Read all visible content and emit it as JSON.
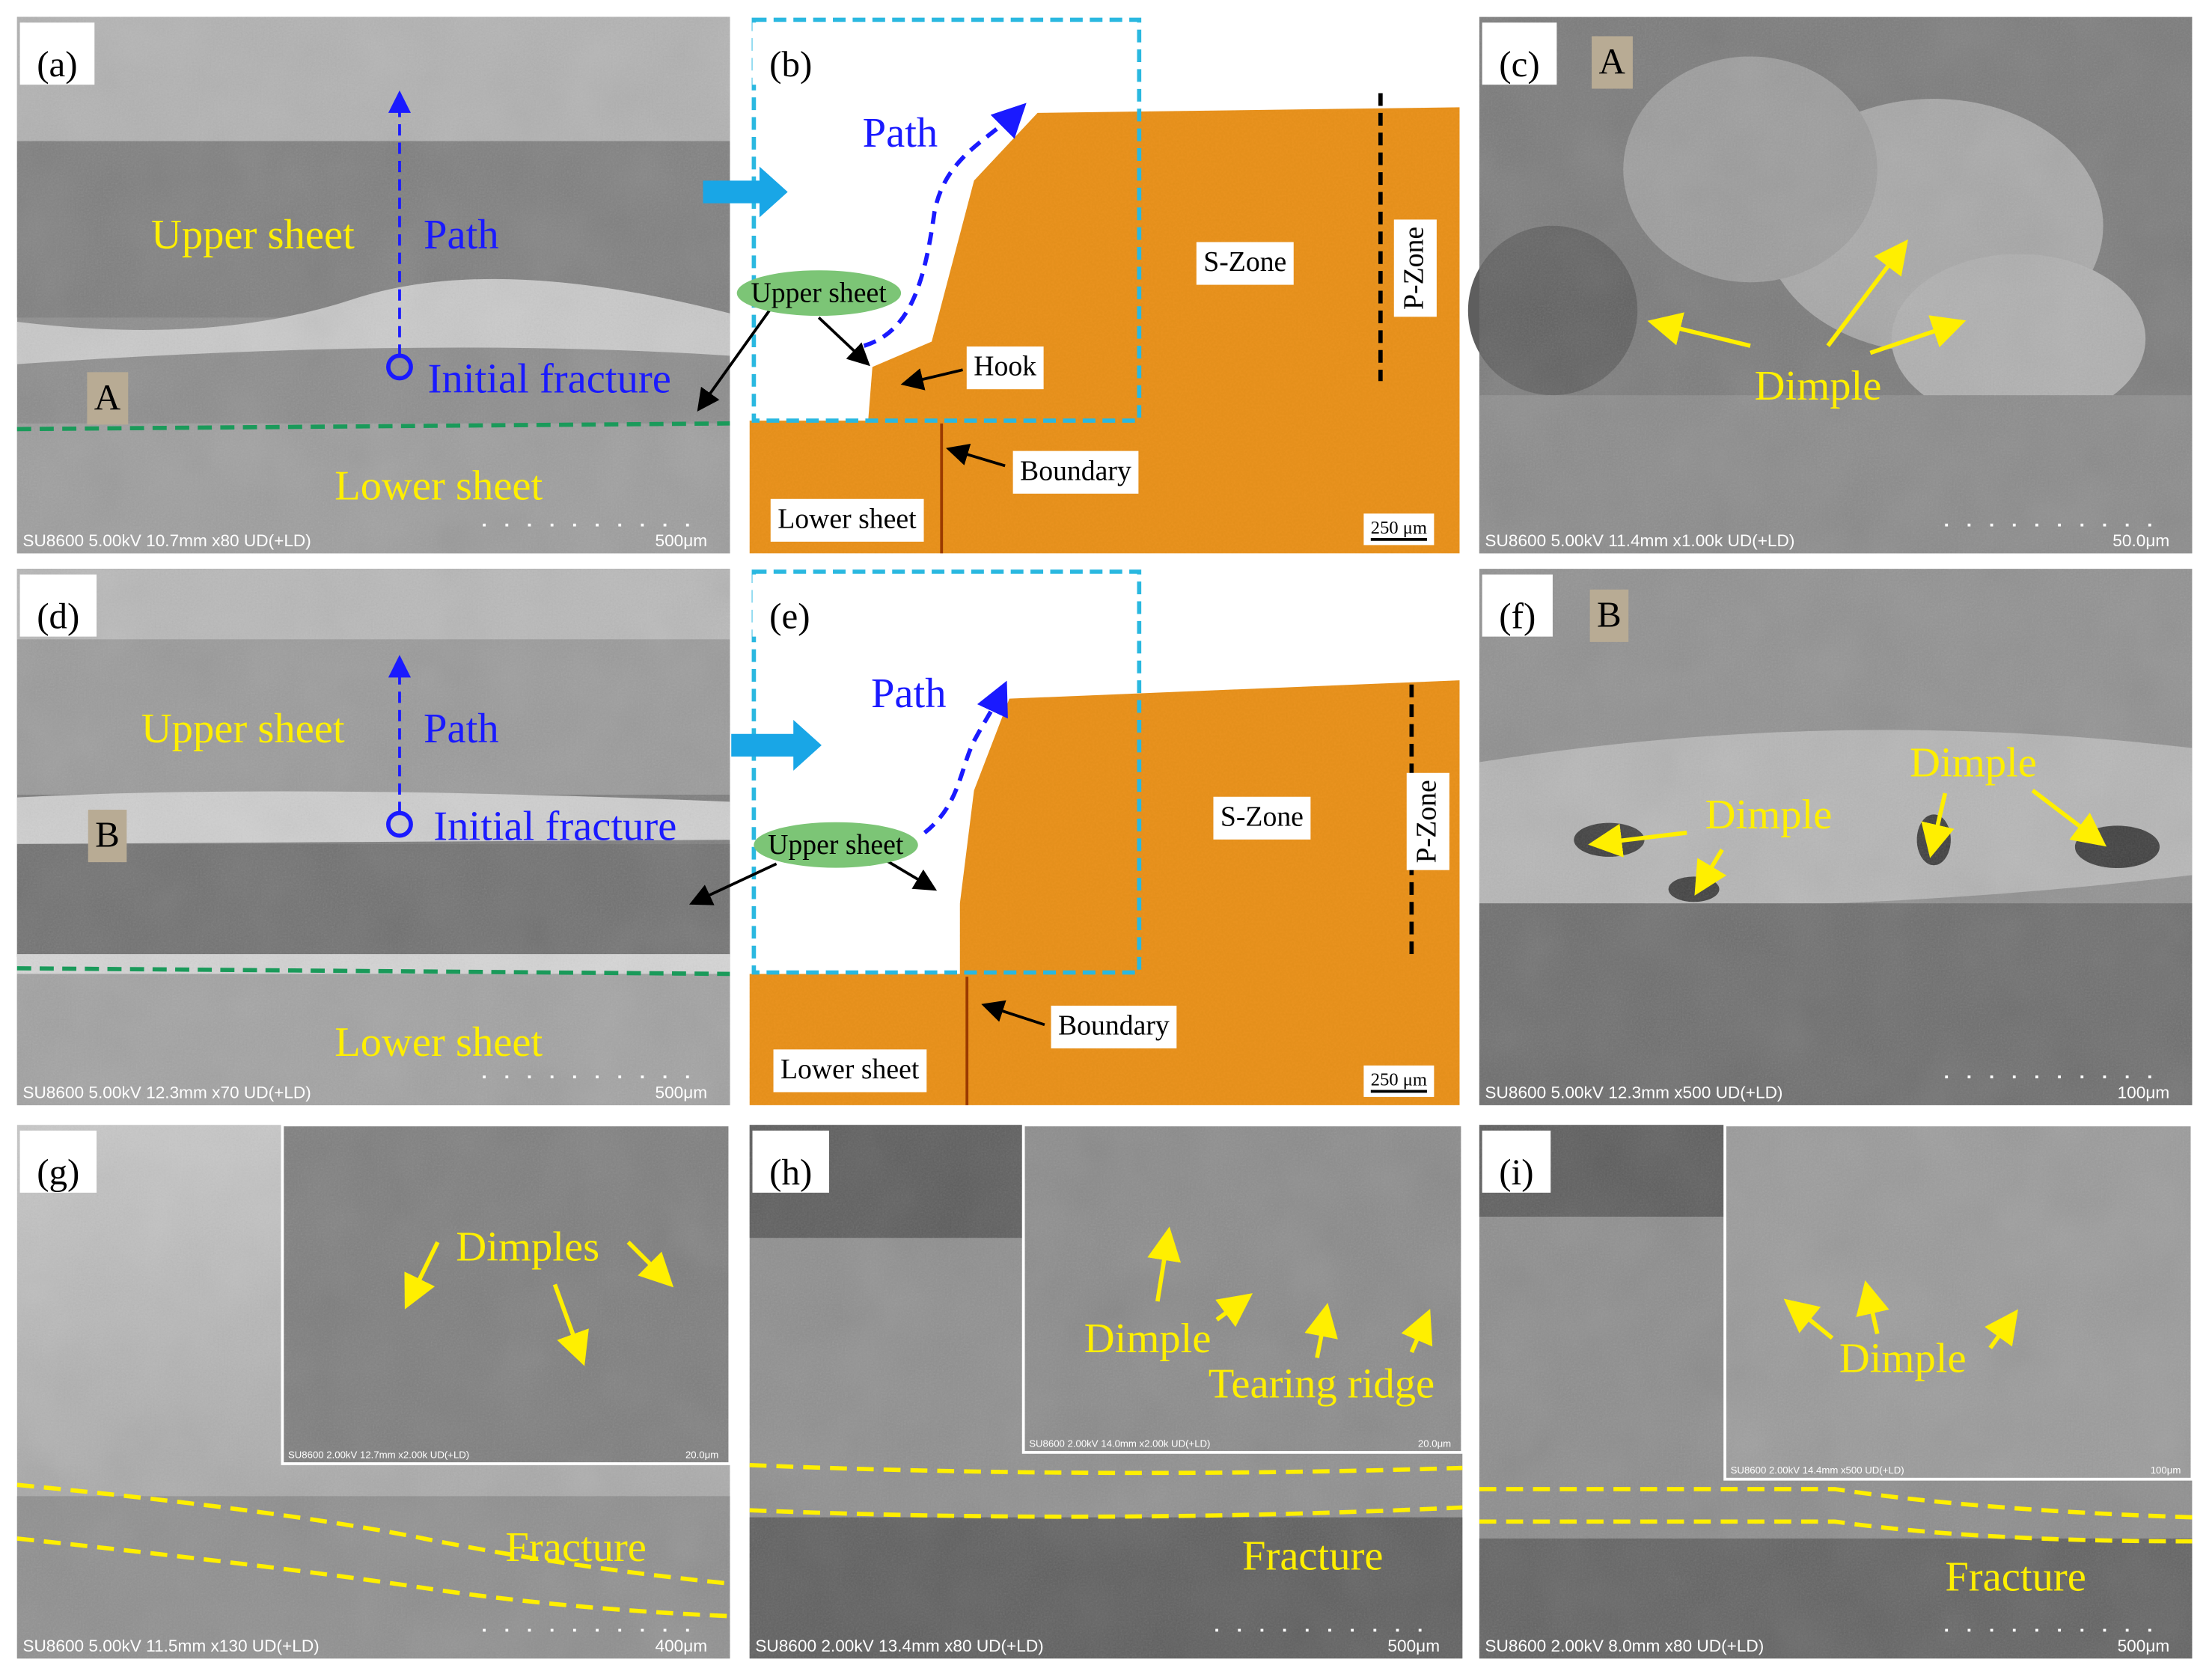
{
  "panels": [
    {
      "label": "(a)",
      "annotations": [
        "Upper sheet",
        "Path",
        "Initial fracture",
        "A",
        "Lower sheet"
      ],
      "footer": "SU8600 5.00kV 10.7mm x80 UD(+LD)",
      "scale_bar": "500μm"
    },
    {
      "label": "(b)",
      "annotations": [
        "Path",
        "Upper sheet",
        "Hook",
        "S-Zone",
        "P-Zone",
        "Boundary",
        "Lower sheet"
      ],
      "scale_bar": "250 μm"
    },
    {
      "label": "(c)",
      "annotations": [
        "A",
        "Dimple"
      ],
      "footer": "SU8600 5.00kV 11.4mm x1.00k UD(+LD)",
      "scale_bar": "50.0μm"
    },
    {
      "label": "(d)",
      "annotations": [
        "Upper sheet",
        "Path",
        "Initial fracture",
        "B",
        "Lower sheet"
      ],
      "footer": "SU8600 5.00kV 12.3mm x70 UD(+LD)",
      "scale_bar": "500μm"
    },
    {
      "label": "(e)",
      "annotations": [
        "Path",
        "Upper sheet",
        "S-Zone",
        "P-Zone",
        "Boundary",
        "Lower sheet"
      ],
      "scale_bar": "250 μm"
    },
    {
      "label": "(f)",
      "annotations": [
        "B",
        "Dimple",
        "Dimple"
      ],
      "footer": "SU8600 5.00kV 12.3mm x500 UD(+LD)",
      "scale_bar": "100μm"
    },
    {
      "label": "(g)",
      "annotations": [
        "Dimples",
        "Fracture"
      ],
      "footer": "SU8600 5.00kV 11.5mm x130 UD(+LD)",
      "scale_bar": "400μm",
      "inset": {
        "footer": "SU8600 2.00kV 12.7mm x2.00k UD(+LD)",
        "scale_bar": "20.0μm"
      }
    },
    {
      "label": "(h)",
      "annotations": [
        "Dimple",
        "Tearing ridge",
        "Fracture"
      ],
      "footer": "SU8600 2.00kV 13.4mm x80 UD(+LD)",
      "scale_bar": "500μm",
      "inset": {
        "footer": "SU8600 2.00kV 14.0mm x2.00k UD(+LD)",
        "scale_bar": "20.0μm"
      }
    },
    {
      "label": "(i)",
      "annotations": [
        "Dimple",
        "Fracture"
      ],
      "footer": "SU8600 2.00kV 8.0mm x80 UD(+LD)",
      "scale_bar": "500μm",
      "inset": {
        "footer": "SU8600 2.00kV 14.4mm x500 UD(+LD)",
        "scale_bar": "100μm"
      }
    }
  ]
}
